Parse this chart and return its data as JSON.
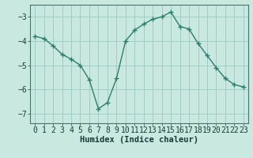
{
  "x": [
    0,
    1,
    2,
    3,
    4,
    5,
    6,
    7,
    8,
    9,
    10,
    11,
    12,
    13,
    14,
    15,
    16,
    17,
    18,
    19,
    20,
    21,
    22,
    23
  ],
  "y": [
    -3.8,
    -3.9,
    -4.2,
    -4.55,
    -4.75,
    -5.0,
    -5.6,
    -6.8,
    -6.55,
    -5.55,
    -4.0,
    -3.55,
    -3.3,
    -3.1,
    -3.0,
    -2.8,
    -3.4,
    -3.5,
    -4.1,
    -4.6,
    -5.1,
    -5.55,
    -5.8,
    -5.9
  ],
  "line_color": "#2e7d6e",
  "marker": "+",
  "marker_size": 4,
  "bg_color": "#c8e8e0",
  "grid_color": "#9ecec6",
  "xlabel": "Humidex (Indice chaleur)",
  "ylim": [
    -7.4,
    -2.5
  ],
  "xlim": [
    -0.5,
    23.5
  ],
  "yticks": [
    -7,
    -6,
    -5,
    -4,
    -3
  ],
  "xtick_labels": [
    "0",
    "1",
    "2",
    "3",
    "4",
    "5",
    "6",
    "7",
    "8",
    "9",
    "10",
    "11",
    "12",
    "13",
    "14",
    "15",
    "16",
    "17",
    "18",
    "19",
    "20",
    "21",
    "22",
    "23"
  ],
  "tick_color": "#1a3a3a",
  "axis_color": "#4a7070",
  "fontsize_xlabel": 7.5,
  "fontsize_tick": 7.0,
  "linewidth": 1.0
}
